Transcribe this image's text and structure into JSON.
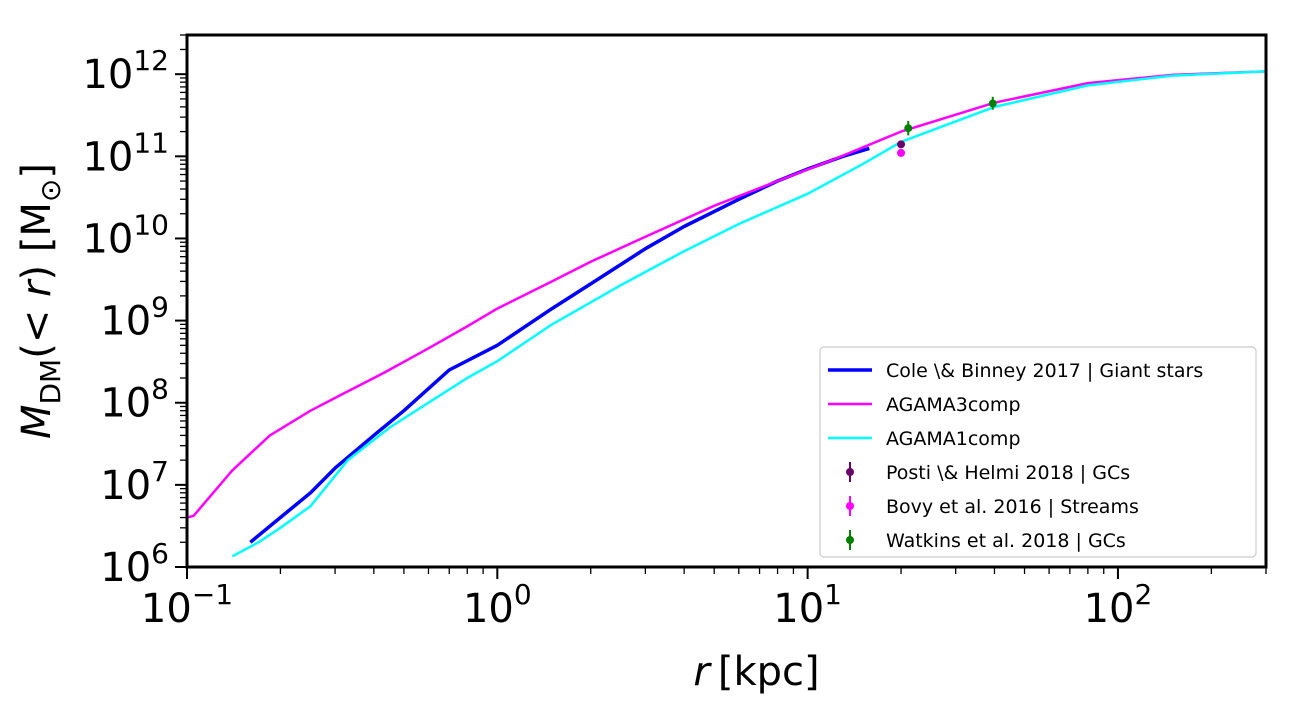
{
  "chart_data": {
    "type": "line",
    "title": "",
    "xlabel": {
      "var": "r",
      "unit": "kpc"
    },
    "ylabel": {
      "var": "M",
      "sub": "DM",
      "arg": "(< r)",
      "unit": "M",
      "unit_sub": "⊙"
    },
    "xscale": "log",
    "yscale": "log",
    "xlim": [
      0.1,
      300
    ],
    "ylim": [
      1000000,
      3000000000000
    ],
    "xtick_labels": [
      {
        "value": 0.1,
        "base": "10",
        "exp": "−1"
      },
      {
        "value": 1,
        "base": "10",
        "exp": "0"
      },
      {
        "value": 10,
        "base": "10",
        "exp": "1"
      },
      {
        "value": 100,
        "base": "10",
        "exp": "2"
      }
    ],
    "ytick_labels": [
      {
        "value": 1000000,
        "base": "10",
        "exp": "6"
      },
      {
        "value": 10000000,
        "base": "10",
        "exp": "7"
      },
      {
        "value": 100000000,
        "base": "10",
        "exp": "8"
      },
      {
        "value": 1000000000,
        "base": "10",
        "exp": "9"
      },
      {
        "value": 10000000000,
        "base": "10",
        "exp": "10"
      },
      {
        "value": 100000000000,
        "base": "10",
        "exp": "11"
      },
      {
        "value": 1000000000000,
        "base": "10",
        "exp": "12"
      }
    ],
    "grid": false,
    "legend_position": "lower-right",
    "series": [
      {
        "name": "Cole \\& Binney 2017  |  Giant stars",
        "kind": "line",
        "color": "#0000ff",
        "width": 3.5,
        "x": [
          0.16,
          0.2,
          0.25,
          0.3,
          0.4,
          0.5,
          0.7,
          1.0,
          1.5,
          2.0,
          3.0,
          4.0,
          6.0,
          8.0,
          10.0,
          13.0,
          15.8
        ],
        "y": [
          2000000,
          4000000,
          8000000,
          16000000,
          40000000,
          80000000,
          250000000,
          500000000,
          1400000000,
          2800000000,
          7500000000,
          14000000000,
          30000000000,
          50000000000,
          70000000000,
          100000000000,
          125000000000
        ]
      },
      {
        "name": "AGAMA3comp",
        "kind": "line",
        "color": "#ff00ff",
        "width": 2.5,
        "x": [
          0.1,
          0.105,
          0.14,
          0.185,
          0.25,
          0.32,
          0.43,
          0.6,
          0.8,
          1.0,
          1.5,
          2.0,
          3.0,
          5.0,
          8.0,
          12.0,
          20.0,
          40.0,
          80.0,
          150.0,
          300.0
        ],
        "y": [
          4000000,
          4200000,
          15000000,
          40000000,
          80000000,
          130000000,
          230000000,
          460000000,
          850000000,
          1400000000,
          3000000000,
          5200000000,
          10500000000,
          25000000000,
          50000000000,
          90000000000,
          200000000000,
          450000000000,
          780000000000,
          980000000000,
          1080000000000
        ]
      },
      {
        "name": "AGAMA1comp",
        "kind": "line",
        "color": "#00ffff",
        "width": 2.5,
        "x": [
          0.14,
          0.17,
          0.2,
          0.25,
          0.33,
          0.45,
          0.6,
          0.8,
          1.0,
          1.5,
          2.5,
          4.0,
          6.0,
          10.0,
          15.0,
          20.0,
          40.0,
          80.0,
          150.0,
          300.0
        ],
        "y": [
          1350000,
          2000000,
          3000000,
          5500000,
          20000000,
          50000000,
          100000000,
          200000000,
          320000000,
          900000000,
          2700000000,
          7000000000,
          15000000000,
          35000000000,
          80000000000,
          150000000000,
          400000000000,
          730000000000,
          960000000000,
          1080000000000
        ]
      },
      {
        "name": "Posti \\& Helmi 2018  |  GCs",
        "kind": "errorbar",
        "color": "#6a006a",
        "points": [
          {
            "x": 20.0,
            "y": 140000000000,
            "ylo": 130000000000,
            "yhi": 150000000000
          }
        ]
      },
      {
        "name": "Bovy et al. 2016  |  Streams",
        "kind": "errorbar",
        "color": "#ff00ff",
        "points": [
          {
            "x": 20.0,
            "y": 110000000000,
            "ylo": 100000000000,
            "yhi": 120000000000
          }
        ]
      },
      {
        "name": "Watkins et al. 2018  |  GCs",
        "kind": "errorbar",
        "color": "#007f00",
        "points": [
          {
            "x": 21.1,
            "y": 220000000000,
            "ylo": 180000000000,
            "yhi": 270000000000
          },
          {
            "x": 39.5,
            "y": 440000000000,
            "ylo": 370000000000,
            "yhi": 530000000000
          }
        ]
      }
    ]
  }
}
